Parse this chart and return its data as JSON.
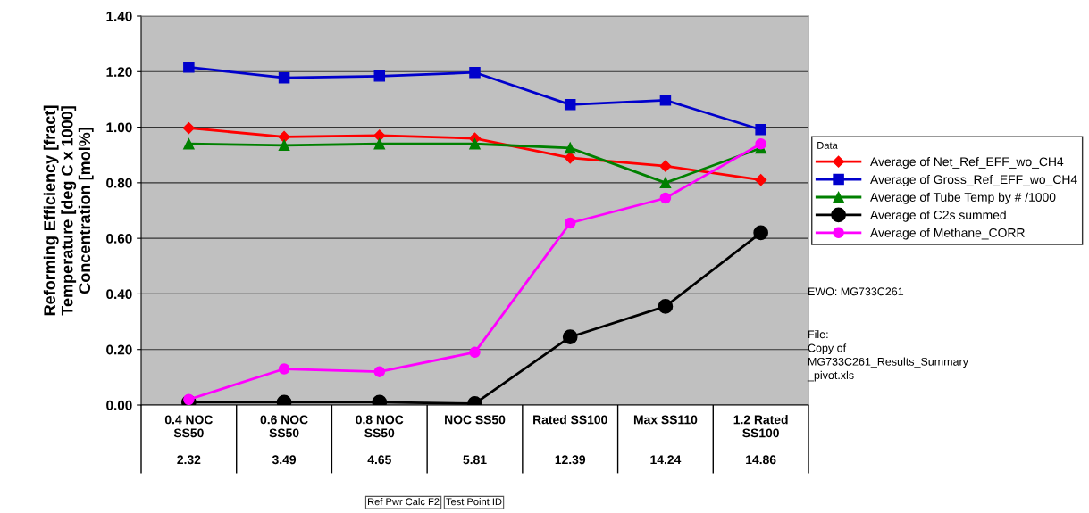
{
  "chart_data": {
    "type": "line",
    "ylabel": "Reforming Efficiency [fract]\nTemperature [deg C x 1000]\nConcentration [mol%]",
    "categories": [
      "0.4 NOC\nSS50\n\n2.32",
      "0.6 NOC\nSS50\n\n3.49",
      "0.8 NOC\nSS50\n\n4.65",
      "NOC SS50\n\n\n5.81",
      "Rated SS100\n\n\n12.39",
      "Max SS110\n\n\n14.24",
      "1.2 Rated\nSS100\n\n14.86"
    ],
    "series": [
      {
        "name": "Average of Net_Ref_EFF_wo_CH4",
        "color": "#ff0000",
        "marker": "diamond",
        "values": [
          0.997,
          0.965,
          0.97,
          0.96,
          0.89,
          0.86,
          0.81
        ]
      },
      {
        "name": "Average of Gross_Ref_EFF_wo_CH4",
        "color": "#0000cc",
        "marker": "square",
        "values": [
          1.216,
          1.178,
          1.184,
          1.197,
          1.081,
          1.097,
          0.991
        ]
      },
      {
        "name": "Average of Tube Temp by # /1000",
        "color": "#008000",
        "marker": "triangle",
        "values": [
          0.94,
          0.935,
          0.94,
          0.94,
          0.925,
          0.8,
          0.925
        ]
      },
      {
        "name": "Average of C2s summed",
        "color": "#000000",
        "marker": "circle",
        "values": [
          0.01,
          0.01,
          0.01,
          0.005,
          0.245,
          0.355,
          0.62
        ]
      },
      {
        "name": "Average of Methane_CORR",
        "color": "#ff00ff",
        "marker": "circle",
        "values": [
          0.02,
          0.13,
          0.12,
          0.19,
          0.655,
          0.745,
          0.94
        ]
      }
    ],
    "ylim": [
      0,
      1.4
    ],
    "yticks": [
      {
        "value": 0,
        "label": "0.00"
      },
      {
        "value": 0.2,
        "label": "0.20"
      },
      {
        "value": 0.4,
        "label": "0.40"
      },
      {
        "value": 0.6,
        "label": "0.60"
      },
      {
        "value": 0.8,
        "label": "0.80"
      },
      {
        "value": 1.0,
        "label": "1.00"
      },
      {
        "value": 1.2,
        "label": "1.20"
      },
      {
        "value": 1.4,
        "label": "1.40"
      }
    ],
    "grid": "y",
    "legend": "right",
    "legend_title": "Data",
    "line_style": "solid",
    "annotations": [
      "EWO: MG733C261",
      "File:\nCopy of\nMG733C261_Results_Summary\n_pivot.xls",
      "Ref Pwr Calc F2",
      "Test Point ID"
    ]
  }
}
